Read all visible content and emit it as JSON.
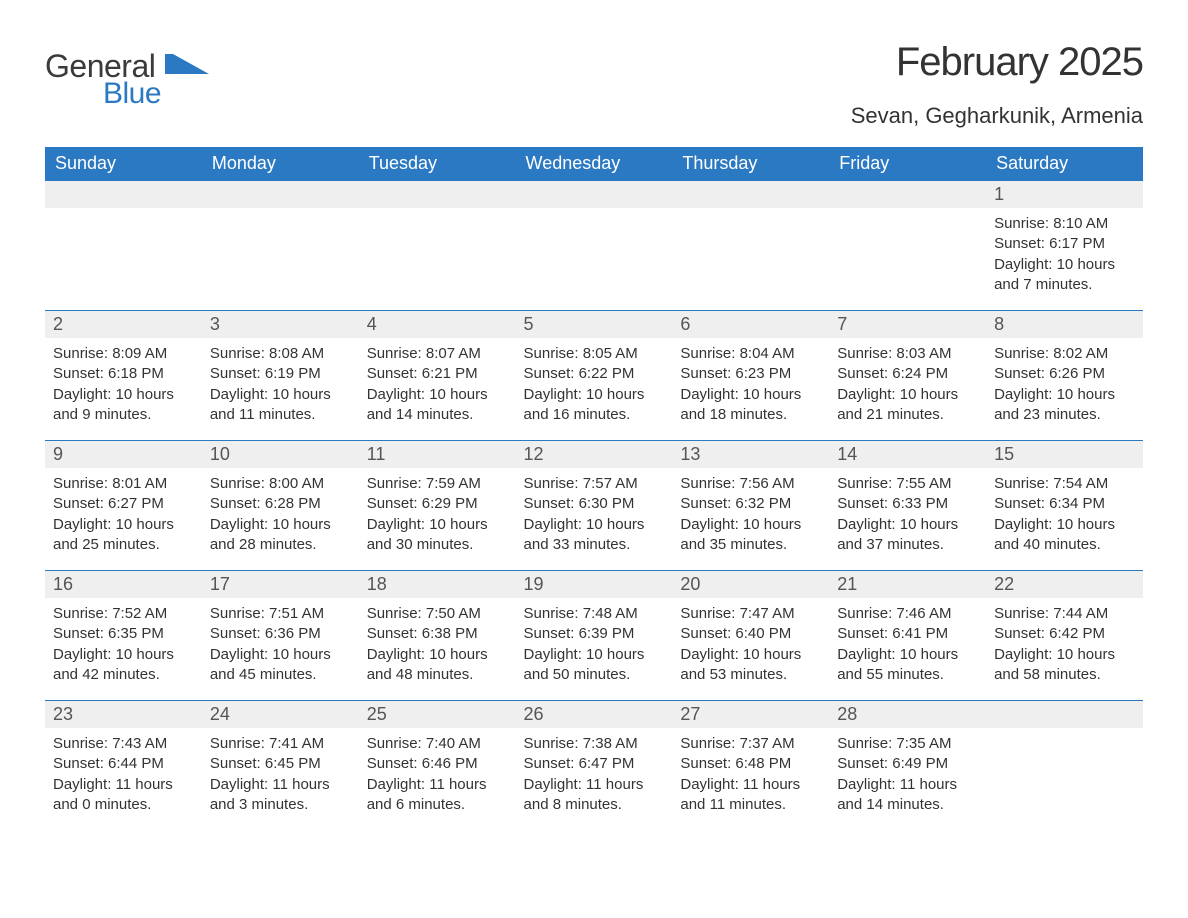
{
  "logo": {
    "text1": "General",
    "text2": "Blue",
    "flag_color": "#2b79c2"
  },
  "title": "February 2025",
  "location": "Sevan, Gegharkunik, Armenia",
  "colors": {
    "header_bg": "#2b79c2",
    "header_text": "#ffffff",
    "daynum_bg": "#efefef",
    "border": "#2b79c2",
    "body_text": "#333333"
  },
  "fonts": {
    "title_size": 40,
    "location_size": 22,
    "dow_size": 18,
    "daynum_size": 18,
    "body_size": 15
  },
  "days_of_week": [
    "Sunday",
    "Monday",
    "Tuesday",
    "Wednesday",
    "Thursday",
    "Friday",
    "Saturday"
  ],
  "weeks": [
    [
      null,
      null,
      null,
      null,
      null,
      null,
      {
        "n": "1",
        "sr": "Sunrise: 8:10 AM",
        "ss": "Sunset: 6:17 PM",
        "dl": "Daylight: 10 hours and 7 minutes."
      }
    ],
    [
      {
        "n": "2",
        "sr": "Sunrise: 8:09 AM",
        "ss": "Sunset: 6:18 PM",
        "dl": "Daylight: 10 hours and 9 minutes."
      },
      {
        "n": "3",
        "sr": "Sunrise: 8:08 AM",
        "ss": "Sunset: 6:19 PM",
        "dl": "Daylight: 10 hours and 11 minutes."
      },
      {
        "n": "4",
        "sr": "Sunrise: 8:07 AM",
        "ss": "Sunset: 6:21 PM",
        "dl": "Daylight: 10 hours and 14 minutes."
      },
      {
        "n": "5",
        "sr": "Sunrise: 8:05 AM",
        "ss": "Sunset: 6:22 PM",
        "dl": "Daylight: 10 hours and 16 minutes."
      },
      {
        "n": "6",
        "sr": "Sunrise: 8:04 AM",
        "ss": "Sunset: 6:23 PM",
        "dl": "Daylight: 10 hours and 18 minutes."
      },
      {
        "n": "7",
        "sr": "Sunrise: 8:03 AM",
        "ss": "Sunset: 6:24 PM",
        "dl": "Daylight: 10 hours and 21 minutes."
      },
      {
        "n": "8",
        "sr": "Sunrise: 8:02 AM",
        "ss": "Sunset: 6:26 PM",
        "dl": "Daylight: 10 hours and 23 minutes."
      }
    ],
    [
      {
        "n": "9",
        "sr": "Sunrise: 8:01 AM",
        "ss": "Sunset: 6:27 PM",
        "dl": "Daylight: 10 hours and 25 minutes."
      },
      {
        "n": "10",
        "sr": "Sunrise: 8:00 AM",
        "ss": "Sunset: 6:28 PM",
        "dl": "Daylight: 10 hours and 28 minutes."
      },
      {
        "n": "11",
        "sr": "Sunrise: 7:59 AM",
        "ss": "Sunset: 6:29 PM",
        "dl": "Daylight: 10 hours and 30 minutes."
      },
      {
        "n": "12",
        "sr": "Sunrise: 7:57 AM",
        "ss": "Sunset: 6:30 PM",
        "dl": "Daylight: 10 hours and 33 minutes."
      },
      {
        "n": "13",
        "sr": "Sunrise: 7:56 AM",
        "ss": "Sunset: 6:32 PM",
        "dl": "Daylight: 10 hours and 35 minutes."
      },
      {
        "n": "14",
        "sr": "Sunrise: 7:55 AM",
        "ss": "Sunset: 6:33 PM",
        "dl": "Daylight: 10 hours and 37 minutes."
      },
      {
        "n": "15",
        "sr": "Sunrise: 7:54 AM",
        "ss": "Sunset: 6:34 PM",
        "dl": "Daylight: 10 hours and 40 minutes."
      }
    ],
    [
      {
        "n": "16",
        "sr": "Sunrise: 7:52 AM",
        "ss": "Sunset: 6:35 PM",
        "dl": "Daylight: 10 hours and 42 minutes."
      },
      {
        "n": "17",
        "sr": "Sunrise: 7:51 AM",
        "ss": "Sunset: 6:36 PM",
        "dl": "Daylight: 10 hours and 45 minutes."
      },
      {
        "n": "18",
        "sr": "Sunrise: 7:50 AM",
        "ss": "Sunset: 6:38 PM",
        "dl": "Daylight: 10 hours and 48 minutes."
      },
      {
        "n": "19",
        "sr": "Sunrise: 7:48 AM",
        "ss": "Sunset: 6:39 PM",
        "dl": "Daylight: 10 hours and 50 minutes."
      },
      {
        "n": "20",
        "sr": "Sunrise: 7:47 AM",
        "ss": "Sunset: 6:40 PM",
        "dl": "Daylight: 10 hours and 53 minutes."
      },
      {
        "n": "21",
        "sr": "Sunrise: 7:46 AM",
        "ss": "Sunset: 6:41 PM",
        "dl": "Daylight: 10 hours and 55 minutes."
      },
      {
        "n": "22",
        "sr": "Sunrise: 7:44 AM",
        "ss": "Sunset: 6:42 PM",
        "dl": "Daylight: 10 hours and 58 minutes."
      }
    ],
    [
      {
        "n": "23",
        "sr": "Sunrise: 7:43 AM",
        "ss": "Sunset: 6:44 PM",
        "dl": "Daylight: 11 hours and 0 minutes."
      },
      {
        "n": "24",
        "sr": "Sunrise: 7:41 AM",
        "ss": "Sunset: 6:45 PM",
        "dl": "Daylight: 11 hours and 3 minutes."
      },
      {
        "n": "25",
        "sr": "Sunrise: 7:40 AM",
        "ss": "Sunset: 6:46 PM",
        "dl": "Daylight: 11 hours and 6 minutes."
      },
      {
        "n": "26",
        "sr": "Sunrise: 7:38 AM",
        "ss": "Sunset: 6:47 PM",
        "dl": "Daylight: 11 hours and 8 minutes."
      },
      {
        "n": "27",
        "sr": "Sunrise: 7:37 AM",
        "ss": "Sunset: 6:48 PM",
        "dl": "Daylight: 11 hours and 11 minutes."
      },
      {
        "n": "28",
        "sr": "Sunrise: 7:35 AM",
        "ss": "Sunset: 6:49 PM",
        "dl": "Daylight: 11 hours and 14 minutes."
      },
      null
    ]
  ]
}
